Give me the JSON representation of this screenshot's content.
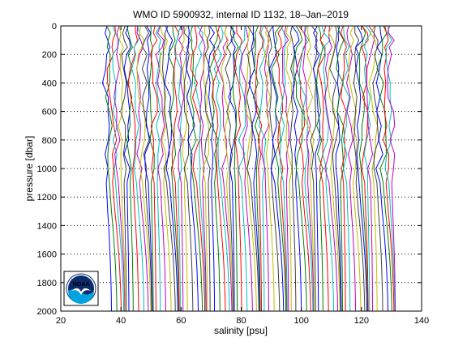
{
  "chart_data": {
    "type": "line",
    "title": "WMO ID 5900932, internal ID 1132, 18–Jan–2019",
    "xlabel": "salinity [psu]",
    "ylabel": "pressure [dbar]",
    "xlim": [
      20,
      140
    ],
    "ylim": [
      2000,
      0
    ],
    "y_reversed": true,
    "grid": "dotted horizontal",
    "x_ticks": [
      20,
      40,
      60,
      80,
      100,
      120,
      140
    ],
    "y_ticks": [
      0,
      200,
      400,
      600,
      800,
      1000,
      1200,
      1400,
      1600,
      1800,
      2000
    ],
    "profile_offsets": {
      "start": 35,
      "end": 130,
      "count": 96,
      "step": 1
    },
    "profile_shape": {
      "comment_free": true,
      "pressure": [
        0,
        50,
        100,
        150,
        200,
        300,
        400,
        500,
        600,
        700,
        800,
        900,
        1000,
        1100,
        1200,
        1300,
        1400,
        1500,
        1600,
        1700,
        1800,
        1900,
        2000
      ],
      "salinity_shift": [
        0.0,
        0.3,
        0.5,
        0.2,
        -0.3,
        -0.8,
        -0.6,
        -0.2,
        0.3,
        0.6,
        0.4,
        0.2,
        0.0,
        0.2,
        0.6,
        1.0,
        1.5,
        1.9,
        2.3,
        2.6,
        2.8,
        3.0,
        3.1
      ]
    },
    "colors": [
      "#0000ff",
      "#008000",
      "#ff0000",
      "#00bfbf",
      "#bf00bf",
      "#bfbf00",
      "#404040"
    ]
  },
  "logo": {
    "text": "NOAA",
    "colors": {
      "sky": "#0a2a6b",
      "sea": "#00a3e0",
      "ring": "#ffffff",
      "gull": "#ffffff"
    }
  }
}
